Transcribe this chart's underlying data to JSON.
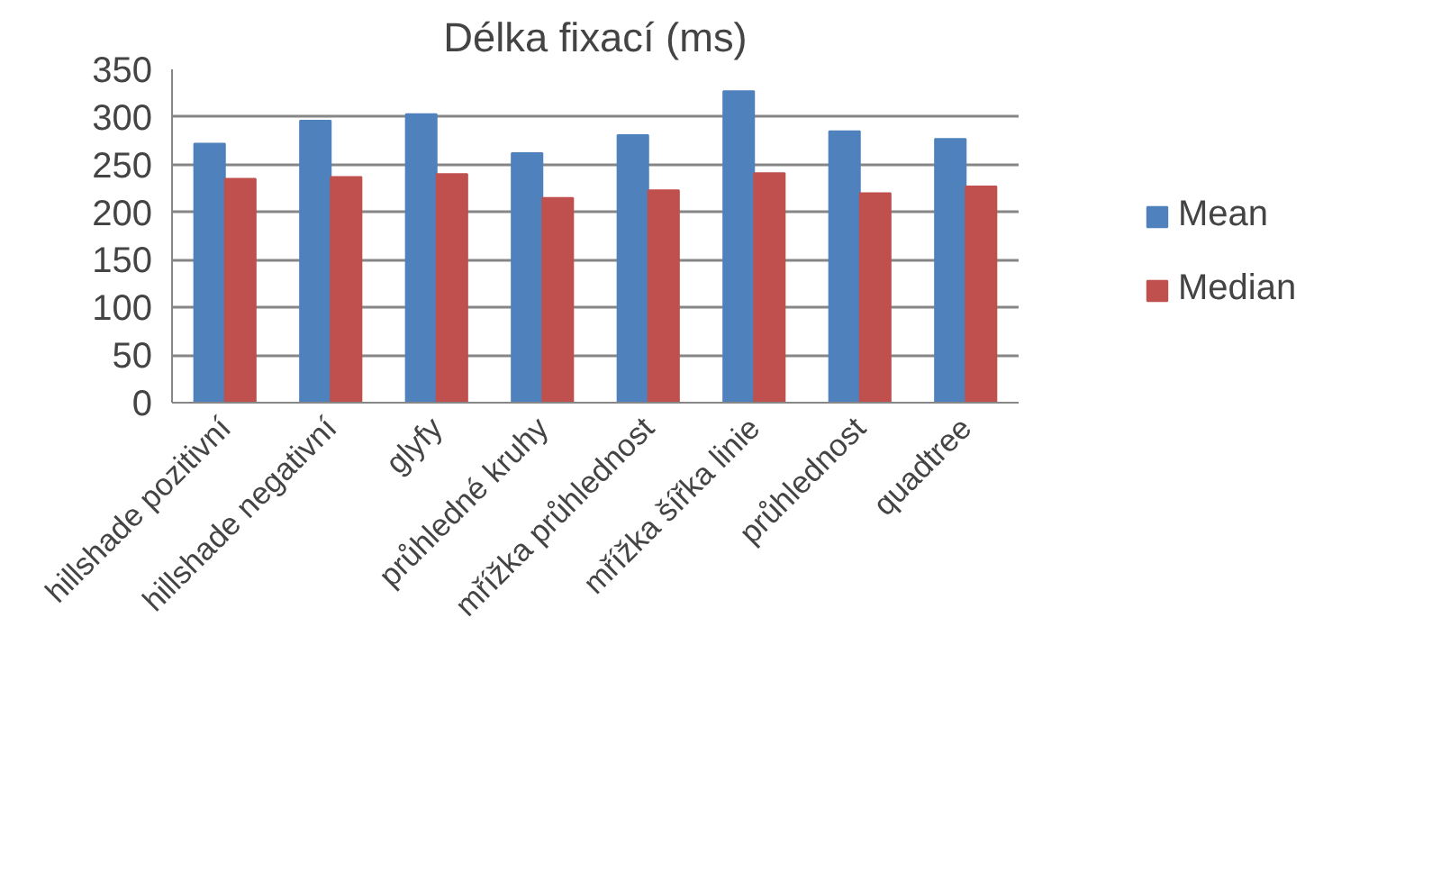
{
  "chart_data": {
    "type": "bar",
    "title": "Délka fixací (ms)",
    "categories": [
      "hillshade pozitivní",
      "hillshade negativní",
      "glyfy",
      "průhledné kruhy",
      "mřížka průhlednost",
      "mřížka šířka linie",
      "průhlednost",
      "quadtree"
    ],
    "series": [
      {
        "name": "Mean",
        "color": "#4f81bd",
        "values": [
          272,
          296,
          303,
          262,
          281,
          327,
          285,
          277
        ]
      },
      {
        "name": "Median",
        "color": "#c0504d",
        "values": [
          235,
          237,
          240,
          215,
          223,
          241,
          220,
          227
        ]
      }
    ],
    "ylim": [
      0,
      350
    ],
    "yticks": [
      0,
      50,
      100,
      150,
      200,
      250,
      300,
      350
    ],
    "grid": "y",
    "legend": "right"
  }
}
